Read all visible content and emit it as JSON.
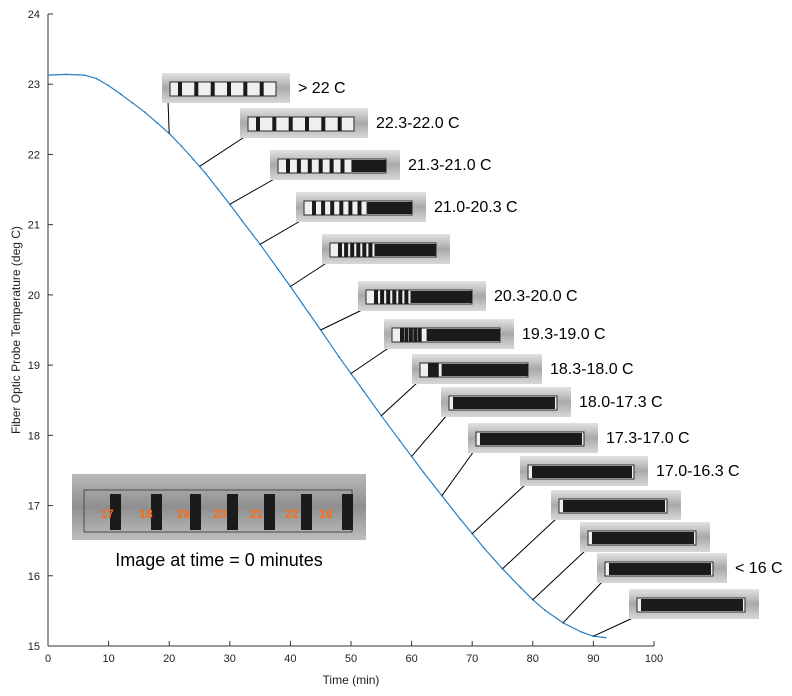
{
  "chart_data": {
    "type": "line",
    "xlabel": "Time (min)",
    "ylabel": "Fiber Optic Probe Temperature (deg C)",
    "xlim": [
      0,
      100
    ],
    "ylim": [
      15,
      24
    ],
    "xticks": [
      0,
      10,
      20,
      30,
      40,
      50,
      60,
      70,
      80,
      90,
      100
    ],
    "yticks": [
      15,
      16,
      17,
      18,
      19,
      20,
      21,
      22,
      23,
      24
    ],
    "grid": false,
    "series": [
      {
        "color": "#2a7fc1",
        "x": [
          0,
          3,
          6,
          8,
          10,
          12,
          14,
          16,
          18,
          20,
          22,
          24,
          26,
          28,
          30,
          32,
          35,
          38,
          40,
          42,
          45,
          48,
          50,
          52,
          55,
          58,
          60,
          62,
          65,
          68,
          70,
          72,
          75,
          78,
          80,
          82,
          85,
          88,
          90,
          92
        ],
        "y": [
          23.13,
          23.14,
          23.13,
          23.08,
          22.98,
          22.86,
          22.73,
          22.6,
          22.45,
          22.3,
          22.12,
          21.93,
          21.73,
          21.51,
          21.29,
          21.06,
          20.72,
          20.36,
          20.12,
          19.87,
          19.5,
          19.12,
          18.88,
          18.64,
          18.28,
          17.93,
          17.7,
          17.47,
          17.14,
          16.81,
          16.6,
          16.39,
          16.1,
          15.83,
          15.66,
          15.51,
          15.33,
          15.2,
          15.14,
          15.12
        ]
      }
    ],
    "annotations": [
      {
        "label": "> 22 C",
        "time": 20
      },
      {
        "label": "22.3-22.0 C",
        "time": 25
      },
      {
        "label": "21.3-21.0 C",
        "time": 30
      },
      {
        "label": "21.0-20.3 C",
        "time": 35
      },
      {
        "label": "",
        "time": 40
      },
      {
        "label": "20.3-20.0 C",
        "time": 45
      },
      {
        "label": "19.3-19.0 C",
        "time": 50
      },
      {
        "label": "18.3-18.0 C",
        "time": 55
      },
      {
        "label": "18.0-17.3 C",
        "time": 60
      },
      {
        "label": "17.3-17.0 C",
        "time": 65
      },
      {
        "label": "17.0-16.3 C",
        "time": 70
      },
      {
        "label": "",
        "time": 75
      },
      {
        "label": "",
        "time": 80
      },
      {
        "label": "< 16 C",
        "time": 85
      },
      {
        "label": "",
        "time": 90
      }
    ],
    "inset": {
      "caption": "Image at time = 0 minutes",
      "segment_labels": [
        "17",
        "18",
        "19",
        "20",
        "21",
        "22",
        "16"
      ]
    }
  },
  "colors": {
    "line": "#2a7fc1",
    "axis": "#333333",
    "strip_background": "#c9c9c9",
    "dark_band": "#1b1b1b",
    "segment_number": "#ff6a13"
  }
}
